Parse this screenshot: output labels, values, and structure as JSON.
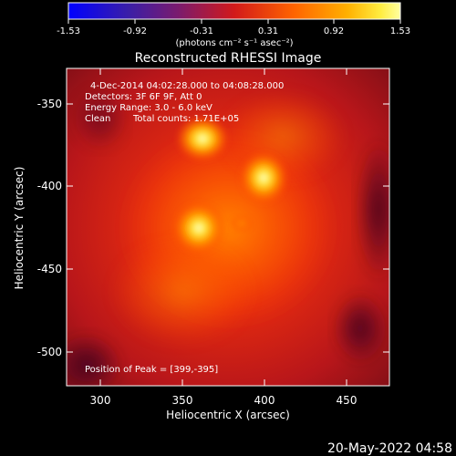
{
  "colorbar": {
    "ticks": [
      "-1.53",
      "-0.92",
      "-0.31",
      "0.31",
      "0.92",
      "1.53"
    ],
    "units": "(photons cm⁻² s⁻¹ asec⁻²)"
  },
  "title": "Reconstructed RHESSI Image",
  "info": {
    "time_range": "4-Dec-2014 04:02:28.000 to 04:08:28.000",
    "detectors": "Detectors: 3F 6F 9F, Att 0",
    "energy": "Energy Range: 3.0 - 6.0 keV",
    "method": "Clean",
    "counts": "Total counts: 1.71E+05",
    "peak": "Position of Peak = [399,-395]"
  },
  "axes": {
    "xlabel": "Heliocentric X (arcsec)",
    "ylabel": "Heliocentric Y (arcsec)",
    "xticks": [
      "300",
      "350",
      "400",
      "450"
    ],
    "yticks": [
      "-350",
      "-400",
      "-450",
      "-500"
    ]
  },
  "footer": {
    "timestamp": "20-May-2022 04:58"
  },
  "colors": {
    "background": "#000000",
    "colormap": [
      "#0000ff",
      "#3c1da8",
      "#7a1b6e",
      "#c8191e",
      "#ff5a00",
      "#ffb000",
      "#ffff6a",
      "#ffffff"
    ]
  }
}
